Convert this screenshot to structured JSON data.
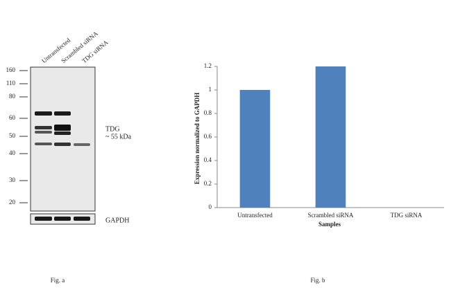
{
  "blot": {
    "lanes": [
      "Untransfected",
      "Scrambled siRNA",
      "TDG siRNA"
    ],
    "markers": [
      160,
      110,
      80,
      60,
      50,
      40,
      30,
      20
    ],
    "band_label": "TDG",
    "band_size": "~ 55 kDa",
    "loading_control": "GAPDH",
    "caption": "Fig. a"
  },
  "chart_data": {
    "type": "bar",
    "categories": [
      "Untransfected",
      "Scrambled siRNA",
      "TDG siRNA"
    ],
    "values": [
      1,
      1.2,
      0
    ],
    "color": "#4f81bd",
    "ylim": [
      0,
      1.2
    ],
    "yticks": [
      0,
      0.2,
      0.4,
      0.6,
      0.8,
      1,
      1.2
    ],
    "x_label": "Samples",
    "y_label": "Expression normalized to GAPDH",
    "grid": false,
    "caption": "Fig. b"
  }
}
